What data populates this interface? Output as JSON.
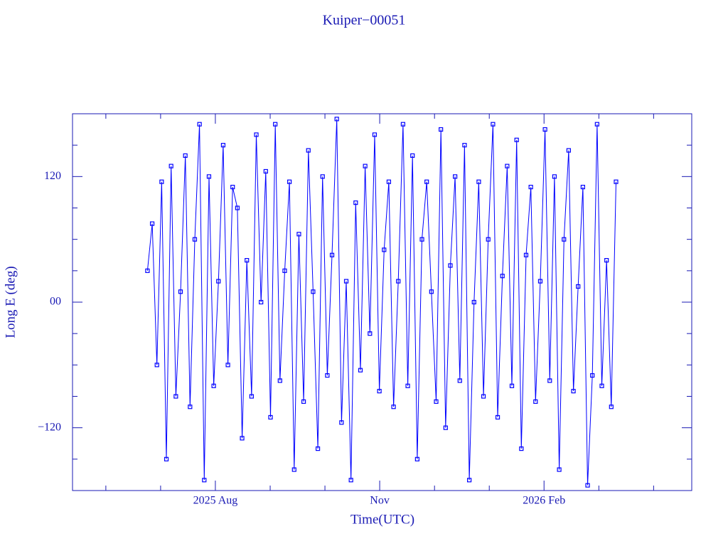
{
  "chart_data": {
    "type": "line",
    "title": "Kuiper−00051",
    "x_label": "Time(UTC)",
    "y_label": "Long E (deg)",
    "xlim": [
      2025.366,
      2026.308
    ],
    "ylim": [
      -180,
      180
    ],
    "xticks": [
      {
        "value": 2025.5833,
        "label": "2025 Aug"
      },
      {
        "value": 2025.8333,
        "label": "Nov"
      },
      {
        "value": 2026.0833,
        "label": "2026 Feb"
      }
    ],
    "xminorticks": [
      2025.4167,
      2025.5,
      2025.6667,
      2025.75,
      2025.9167,
      2026.0,
      2026.1667,
      2026.25
    ],
    "yticks": [
      {
        "value": -120,
        "label": "−120"
      },
      {
        "value": 0,
        "label": "00"
      },
      120
    ],
    "yminorticks": [
      -150,
      -90,
      -60,
      -30,
      30,
      60,
      90,
      150
    ],
    "series": [
      {
        "color": "#0000ff",
        "x": [
          2025.48,
          2025.4872,
          2025.4944,
          2025.5016,
          2025.5088,
          2025.516,
          2025.5232,
          2025.5304,
          2025.5376,
          2025.5448,
          2025.552,
          2025.5592,
          2025.5664,
          2025.5736,
          2025.5808,
          2025.588,
          2025.5952,
          2025.6024,
          2025.6096,
          2025.6168,
          2025.624,
          2025.6312,
          2025.6384,
          2025.6456,
          2025.6528,
          2025.66,
          2025.6672,
          2025.6744,
          2025.6816,
          2025.6888,
          2025.696,
          2025.7032,
          2025.7104,
          2025.7176,
          2025.7248,
          2025.732,
          2025.7392,
          2025.7464,
          2025.7536,
          2025.7608,
          2025.768,
          2025.7752,
          2025.7824,
          2025.7896,
          2025.7968,
          2025.804,
          2025.8112,
          2025.8184,
          2025.8256,
          2025.8328,
          2025.84,
          2025.8472,
          2025.8544,
          2025.8616,
          2025.8688,
          2025.876,
          2025.8832,
          2025.8904,
          2025.8976,
          2025.9048,
          2025.912,
          2025.9192,
          2025.9264,
          2025.9336,
          2025.9408,
          2025.948,
          2025.9552,
          2025.9624,
          2025.9696,
          2025.9768,
          2025.984,
          2025.9912,
          2025.9984,
          2026.0056,
          2026.0128,
          2026.02,
          2026.0272,
          2026.0344,
          2026.0416,
          2026.0488,
          2026.056,
          2026.0632,
          2026.0704,
          2026.0776,
          2026.0848,
          2026.092,
          2026.0992,
          2026.1064,
          2026.1136,
          2026.1208,
          2026.128,
          2026.1352,
          2026.1424,
          2026.1496,
          2026.1568,
          2026.164,
          2026.1712,
          2026.1784,
          2026.1856,
          2026.1928
        ],
        "values": [
          30,
          75,
          -60,
          115,
          -150,
          130,
          -90,
          10,
          140,
          -100,
          60,
          170,
          -170,
          120,
          -80,
          20,
          150,
          -60,
          110,
          90,
          -130,
          40,
          -90,
          160,
          0,
          125,
          -110,
          170,
          -75,
          30,
          115,
          -160,
          65,
          -95,
          145,
          10,
          -140,
          120,
          -70,
          45,
          175,
          -115,
          20,
          -170,
          95,
          -65,
          130,
          -30,
          160,
          -85,
          50,
          115,
          -100,
          20,
          170,
          -80,
          140,
          -150,
          60,
          115,
          10,
          -95,
          165,
          -120,
          35,
          120,
          -75,
          150,
          -170,
          0,
          115,
          -90,
          60,
          170,
          -110,
          25,
          130,
          -80,
          155,
          -140,
          45,
          110,
          -95,
          20,
          165,
          -75,
          120,
          -160,
          60,
          145,
          -85,
          15,
          110,
          -175,
          -70,
          170,
          -80,
          40,
          -100,
          115
        ]
      }
    ]
  }
}
